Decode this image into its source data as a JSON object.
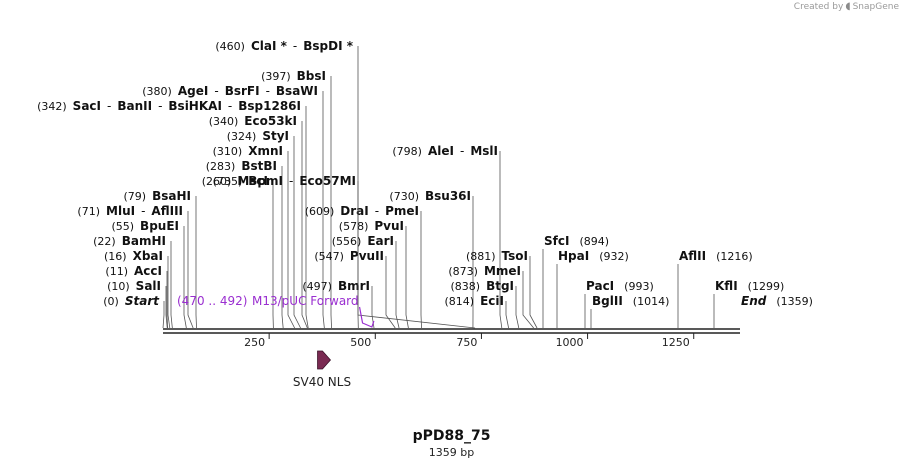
{
  "credit": {
    "text": "Created by",
    "brand": "SnapGene"
  },
  "map": {
    "name": "pPD88_75",
    "length_label": "1359 bp",
    "length": 1359
  },
  "ticks": [
    {
      "label": "250",
      "value": 250
    },
    {
      "label": "500",
      "value": 500
    },
    {
      "label": "750",
      "value": 750
    },
    {
      "label": "1000",
      "value": 1000
    },
    {
      "label": "1250",
      "value": 1250
    }
  ],
  "sites_left": [
    {
      "pos": 0,
      "pos_label": "(0)",
      "names": [
        "Start"
      ],
      "italic": true
    },
    {
      "pos": 10,
      "pos_label": "(10)",
      "names": [
        "SalI"
      ]
    },
    {
      "pos": 11,
      "pos_label": "(11)",
      "names": [
        "AccI"
      ]
    },
    {
      "pos": 16,
      "pos_label": "(16)",
      "names": [
        "XbaI"
      ]
    },
    {
      "pos": 22,
      "pos_label": "(22)",
      "names": [
        "BamHI"
      ]
    },
    {
      "pos": 55,
      "pos_label": "(55)",
      "names": [
        "BpuEI"
      ]
    },
    {
      "pos": 71,
      "pos_label": "(71)",
      "names": [
        "MluI",
        "AflIII"
      ]
    },
    {
      "pos": 79,
      "pos_label": "(79)",
      "names": [
        "BsaHI"
      ]
    },
    {
      "pos": 260,
      "pos_label": "(260)",
      "names": [
        "MscI"
      ]
    },
    {
      "pos": 283,
      "pos_label": "(283)",
      "names": [
        "BstBI"
      ]
    },
    {
      "pos": 310,
      "pos_label": "(310)",
      "names": [
        "XmnI"
      ]
    },
    {
      "pos": 324,
      "pos_label": "(324)",
      "names": [
        "StyI"
      ]
    },
    {
      "pos": 340,
      "pos_label": "(340)",
      "names": [
        "Eco53kI"
      ]
    },
    {
      "pos": 342,
      "pos_label": "(342)",
      "names": [
        "SacI",
        "BanII",
        "BsiHKAI",
        "Bsp1286I"
      ]
    },
    {
      "pos": 380,
      "pos_label": "(380)",
      "names": [
        "AgeI",
        "BsrFI",
        "BsaWI"
      ]
    },
    {
      "pos": 397,
      "pos_label": "(397)",
      "names": [
        "BbsI"
      ]
    },
    {
      "pos": 460,
      "pos_label": "(460)",
      "names": [
        "ClaI *",
        "BspDI *"
      ]
    }
  ],
  "sites_mid": [
    {
      "pos": 497,
      "pos_label": "(497)",
      "names": [
        "BmrI"
      ]
    },
    {
      "pos": 547,
      "pos_label": "(547)",
      "names": [
        "PvuII"
      ]
    },
    {
      "pos": 556,
      "pos_label": "(556)",
      "names": [
        "EarI"
      ]
    },
    {
      "pos": 578,
      "pos_label": "(578)",
      "names": [
        "PvuI"
      ]
    },
    {
      "pos": 609,
      "pos_label": "(609)",
      "names": [
        "DraI",
        "PmeI"
      ]
    },
    {
      "pos": 730,
      "pos_label": "(730)",
      "names": [
        "Bsu36I"
      ]
    },
    {
      "pos": 735,
      "pos_label": "(735)",
      "names": [
        "BpmI",
        "Eco57MI"
      ]
    },
    {
      "pos": 798,
      "pos_label": "(798)",
      "names": [
        "AleI",
        "MslI"
      ]
    },
    {
      "pos": 814,
      "pos_label": "(814)",
      "names": [
        "EciI"
      ]
    },
    {
      "pos": 838,
      "pos_label": "(838)",
      "names": [
        "BtgI"
      ]
    },
    {
      "pos": 873,
      "pos_label": "(873)",
      "names": [
        "MmeI"
      ]
    },
    {
      "pos": 881,
      "pos_label": "(881)",
      "names": [
        "TsoI"
      ]
    }
  ],
  "sites_right": [
    {
      "pos": 894,
      "pos_label": "(894)",
      "names": [
        "SfcI"
      ]
    },
    {
      "pos": 932,
      "pos_label": "(932)",
      "names": [
        "HpaI"
      ]
    },
    {
      "pos": 993,
      "pos_label": "(993)",
      "names": [
        "PacI"
      ]
    },
    {
      "pos": 1014,
      "pos_label": "(1014)",
      "names": [
        "BglII"
      ]
    },
    {
      "pos": 1216,
      "pos_label": "(1216)",
      "names": [
        "AflII"
      ]
    },
    {
      "pos": 1299,
      "pos_label": "(1299)",
      "names": [
        "KflI"
      ]
    },
    {
      "pos": 1359,
      "pos_label": "(1359)",
      "names": [
        "End"
      ],
      "italic": true
    }
  ],
  "primer": {
    "range_label": "(470 .. 492)",
    "name": "M13/pUC Forward",
    "start": 470,
    "end": 492,
    "color": "#9a2fd0"
  },
  "feature": {
    "name": "SV40 NLS",
    "start": 364,
    "end": 385,
    "color": "#7a2a52"
  }
}
